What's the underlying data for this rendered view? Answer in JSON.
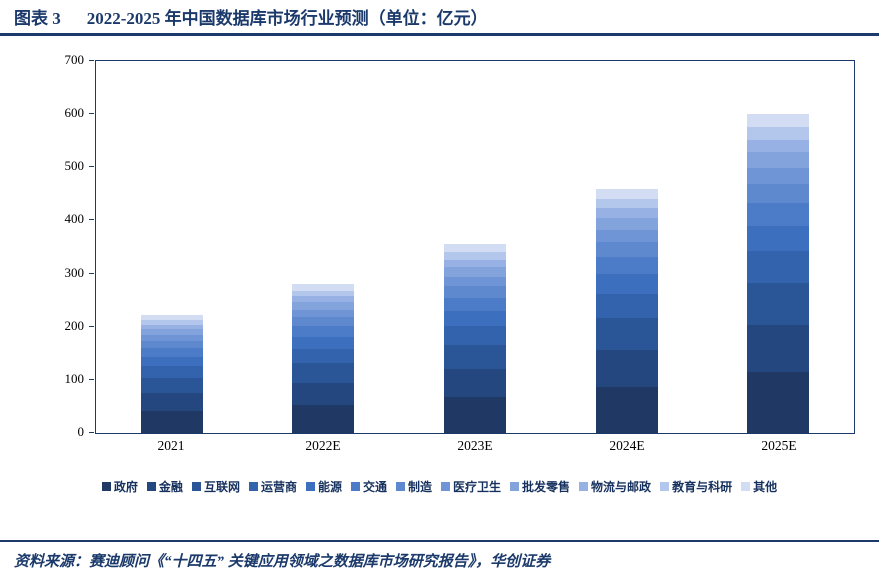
{
  "header": {
    "label": "图表 3",
    "title": "2022-2025 年中国数据库市场行业预测（单位：亿元）"
  },
  "source": {
    "text": "资料来源：赛迪顾问《“十四五” 关键应用领域之数据库市场研究报告》，华创证券"
  },
  "colors": {
    "accent": "#1b3a6b",
    "plot_border": "#1b3a6b"
  },
  "chart_data": {
    "type": "bar",
    "stacked": true,
    "title": "2022-2025 年中国数据库市场行业预测（单位：亿元）",
    "xlabel": "",
    "ylabel": "",
    "categories": [
      "2021",
      "2022E",
      "2023E",
      "2024E",
      "2025E"
    ],
    "series": [
      {
        "name": "政府",
        "color": "#1F3864",
        "values": [
          42,
          53,
          67,
          87,
          114
        ]
      },
      {
        "name": "金融",
        "color": "#24477F",
        "values": [
          33,
          42,
          53,
          69,
          90
        ]
      },
      {
        "name": "互联网",
        "color": "#2A5597",
        "values": [
          29,
          36,
          46,
          60,
          78
        ]
      },
      {
        "name": "运营商",
        "color": "#3263AC",
        "values": [
          22,
          28,
          36,
          46,
          60
        ]
      },
      {
        "name": "能源",
        "color": "#3C70BE",
        "values": [
          18,
          22,
          28,
          37,
          48
        ]
      },
      {
        "name": "交通",
        "color": "#4C7CC7",
        "values": [
          16,
          20,
          25,
          32,
          42
        ]
      },
      {
        "name": "制造",
        "color": "#5E89CF",
        "values": [
          13,
          17,
          21,
          28,
          36
        ]
      },
      {
        "name": "医疗卫生",
        "color": "#7095D6",
        "values": [
          11,
          14,
          18,
          23,
          30
        ]
      },
      {
        "name": "批发零售",
        "color": "#83A3DD",
        "values": [
          11,
          14,
          18,
          23,
          30
        ]
      },
      {
        "name": "物流与邮政",
        "color": "#97B1E4",
        "values": [
          9,
          11,
          14,
          18,
          24
        ]
      },
      {
        "name": "教育与科研",
        "color": "#B3C6EC",
        "values": [
          9,
          11,
          14,
          18,
          24
        ]
      },
      {
        "name": "其他",
        "color": "#D2DDF3",
        "values": [
          9,
          12,
          15,
          19,
          24
        ]
      }
    ],
    "totals": [
      222,
      280,
      355,
      460,
      600
    ],
    "ylim": [
      0,
      700
    ],
    "yticks": [
      0,
      100,
      200,
      300,
      400,
      500,
      600,
      700
    ],
    "grid": false,
    "legend_position": "bottom"
  }
}
